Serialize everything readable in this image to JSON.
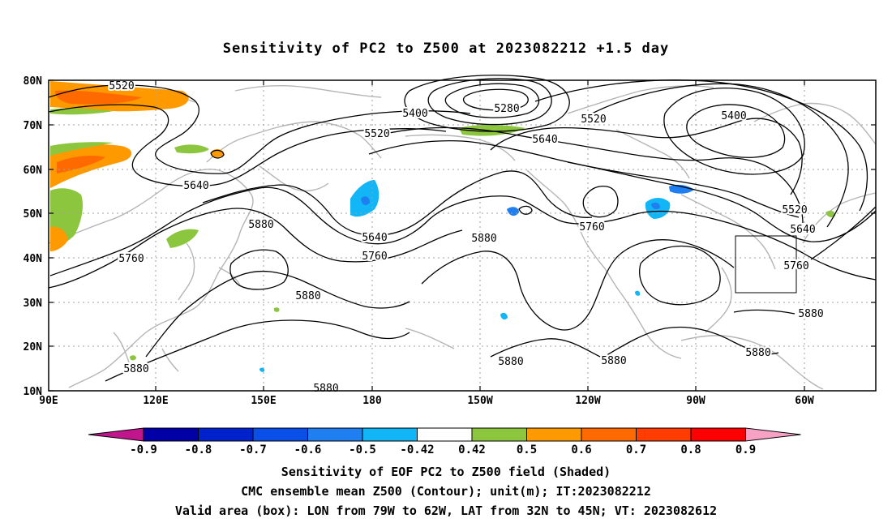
{
  "title": "Sensitivity of PC2 to Z500 at 2023082212 +1.5 day",
  "lon_labels": [
    "90E",
    "120E",
    "150E",
    "180",
    "150W",
    "120W",
    "90W",
    "60W"
  ],
  "lat_labels": [
    "80N",
    "70N",
    "60N",
    "50N",
    "40N",
    "30N",
    "20N",
    "10N"
  ],
  "contour_labels": [
    "5520",
    "5400",
    "5280",
    "5520",
    "5400",
    "5640",
    "5520",
    "5640",
    "5880",
    "5640",
    "5760",
    "5760",
    "5520",
    "5640",
    "5880",
    "5760",
    "5760",
    "5880",
    "5880",
    "5880",
    "5880",
    "5880",
    "5880",
    "5880"
  ],
  "colorbar": {
    "labels": [
      "-0.9",
      "-0.8",
      "-0.7",
      "-0.6",
      "-0.5",
      "-0.42",
      "0.42",
      "0.5",
      "0.6",
      "0.7",
      "0.8",
      "0.9"
    ],
    "colors": [
      "#0000a6",
      "#0022cc",
      "#0a4fe8",
      "#1f7ef0",
      "#12b5f5",
      "#ffffff",
      "#8cc63f",
      "#ff9900",
      "#ff6a00",
      "#ff3d00",
      "#ff0000"
    ],
    "low_color": "#c0158c",
    "high_color": "#f7a1c4"
  },
  "footer": [
    "Sensitivity of EOF PC2 to Z500 field (Shaded)",
    "CMC ensemble mean Z500 (Contour); unit(m); IT:2023082212",
    "Valid area (box): LON from 79W to 62W, LAT from 32N to 45N; VT: 2023082612"
  ]
}
